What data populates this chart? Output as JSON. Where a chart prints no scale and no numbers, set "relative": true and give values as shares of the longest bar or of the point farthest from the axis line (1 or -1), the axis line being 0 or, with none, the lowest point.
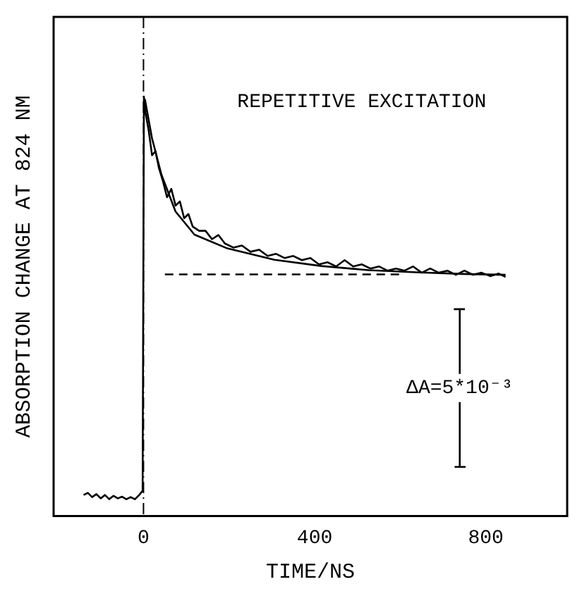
{
  "chart_data": {
    "type": "line",
    "relative": true,
    "xlabel": "TIME/NS",
    "ylabel": "ABSORPTION CHANGE AT 824 NM",
    "xlim": [
      -210,
      990
    ],
    "xticks": [
      0,
      400,
      800
    ],
    "grid": false,
    "legend": false,
    "marker": "none",
    "annotations": [
      "REPETITIVE EXCITATION",
      {
        "text": "ΔA=5*10⁻³",
        "x": 739,
        "y": 0.305
      }
    ],
    "ref_lines": [
      {
        "axis": "x",
        "value": 0,
        "line_style": "dashed",
        "color": "#000000"
      }
    ],
    "series": [
      {
        "color": "#000000",
        "line_style": "solid",
        "x": [
          -140,
          -130,
          -120,
          -110,
          -100,
          -90,
          -80,
          -70,
          -60,
          -50,
          -40,
          -30,
          -20,
          -10,
          -2,
          1,
          5,
          12,
          20,
          28,
          36,
          45,
          55,
          65,
          75,
          85,
          95,
          105,
          115,
          130,
          145,
          160,
          175,
          190,
          210,
          230,
          250,
          270,
          290,
          310,
          330,
          350,
          370,
          390,
          410,
          430,
          450,
          470,
          490,
          510,
          530,
          550,
          570,
          590,
          610,
          630,
          650,
          670,
          690,
          710,
          730,
          750,
          770,
          790,
          810,
          830,
          846
        ],
        "values": [
          0.05,
          0.055,
          0.045,
          0.052,
          0.042,
          0.05,
          0.04,
          0.048,
          0.042,
          0.046,
          0.04,
          0.045,
          0.04,
          0.05,
          0.06,
          1.0,
          0.96,
          0.92,
          0.86,
          0.87,
          0.83,
          0.8,
          0.76,
          0.78,
          0.74,
          0.75,
          0.71,
          0.72,
          0.69,
          0.68,
          0.68,
          0.66,
          0.67,
          0.65,
          0.64,
          0.645,
          0.63,
          0.635,
          0.62,
          0.625,
          0.615,
          0.62,
          0.61,
          0.615,
          0.6,
          0.605,
          0.595,
          0.61,
          0.595,
          0.6,
          0.59,
          0.595,
          0.585,
          0.59,
          0.585,
          0.595,
          0.58,
          0.59,
          0.58,
          0.585,
          0.575,
          0.585,
          0.575,
          0.58,
          0.572,
          0.578,
          0.57
        ]
      },
      {
        "type": "line",
        "color": "#000000",
        "line_style": "solid",
        "x": [
          3.3,
          19.8,
          41.9,
          74.9,
          119,
          196,
          306,
          416,
          527,
          637,
          747,
          846
        ],
        "values": [
          0.994,
          0.901,
          0.814,
          0.726,
          0.671,
          0.638,
          0.611,
          0.596,
          0.586,
          0.581,
          0.577,
          0.575
        ]
      },
      {
        "type": "line",
        "color": "#000000",
        "line_style": "dashed",
        "x": [
          50,
          600
        ],
        "values": [
          0.576,
          0.576
        ]
      },
      {
        "type": "line",
        "color": "#000000",
        "line_style": "solid",
        "x": [
          727,
          751,
          739,
          739,
          727,
          751
        ],
        "values": [
          0.117,
          0.117,
          0.117,
          0.493,
          0.493,
          0.493
        ]
      }
    ]
  }
}
